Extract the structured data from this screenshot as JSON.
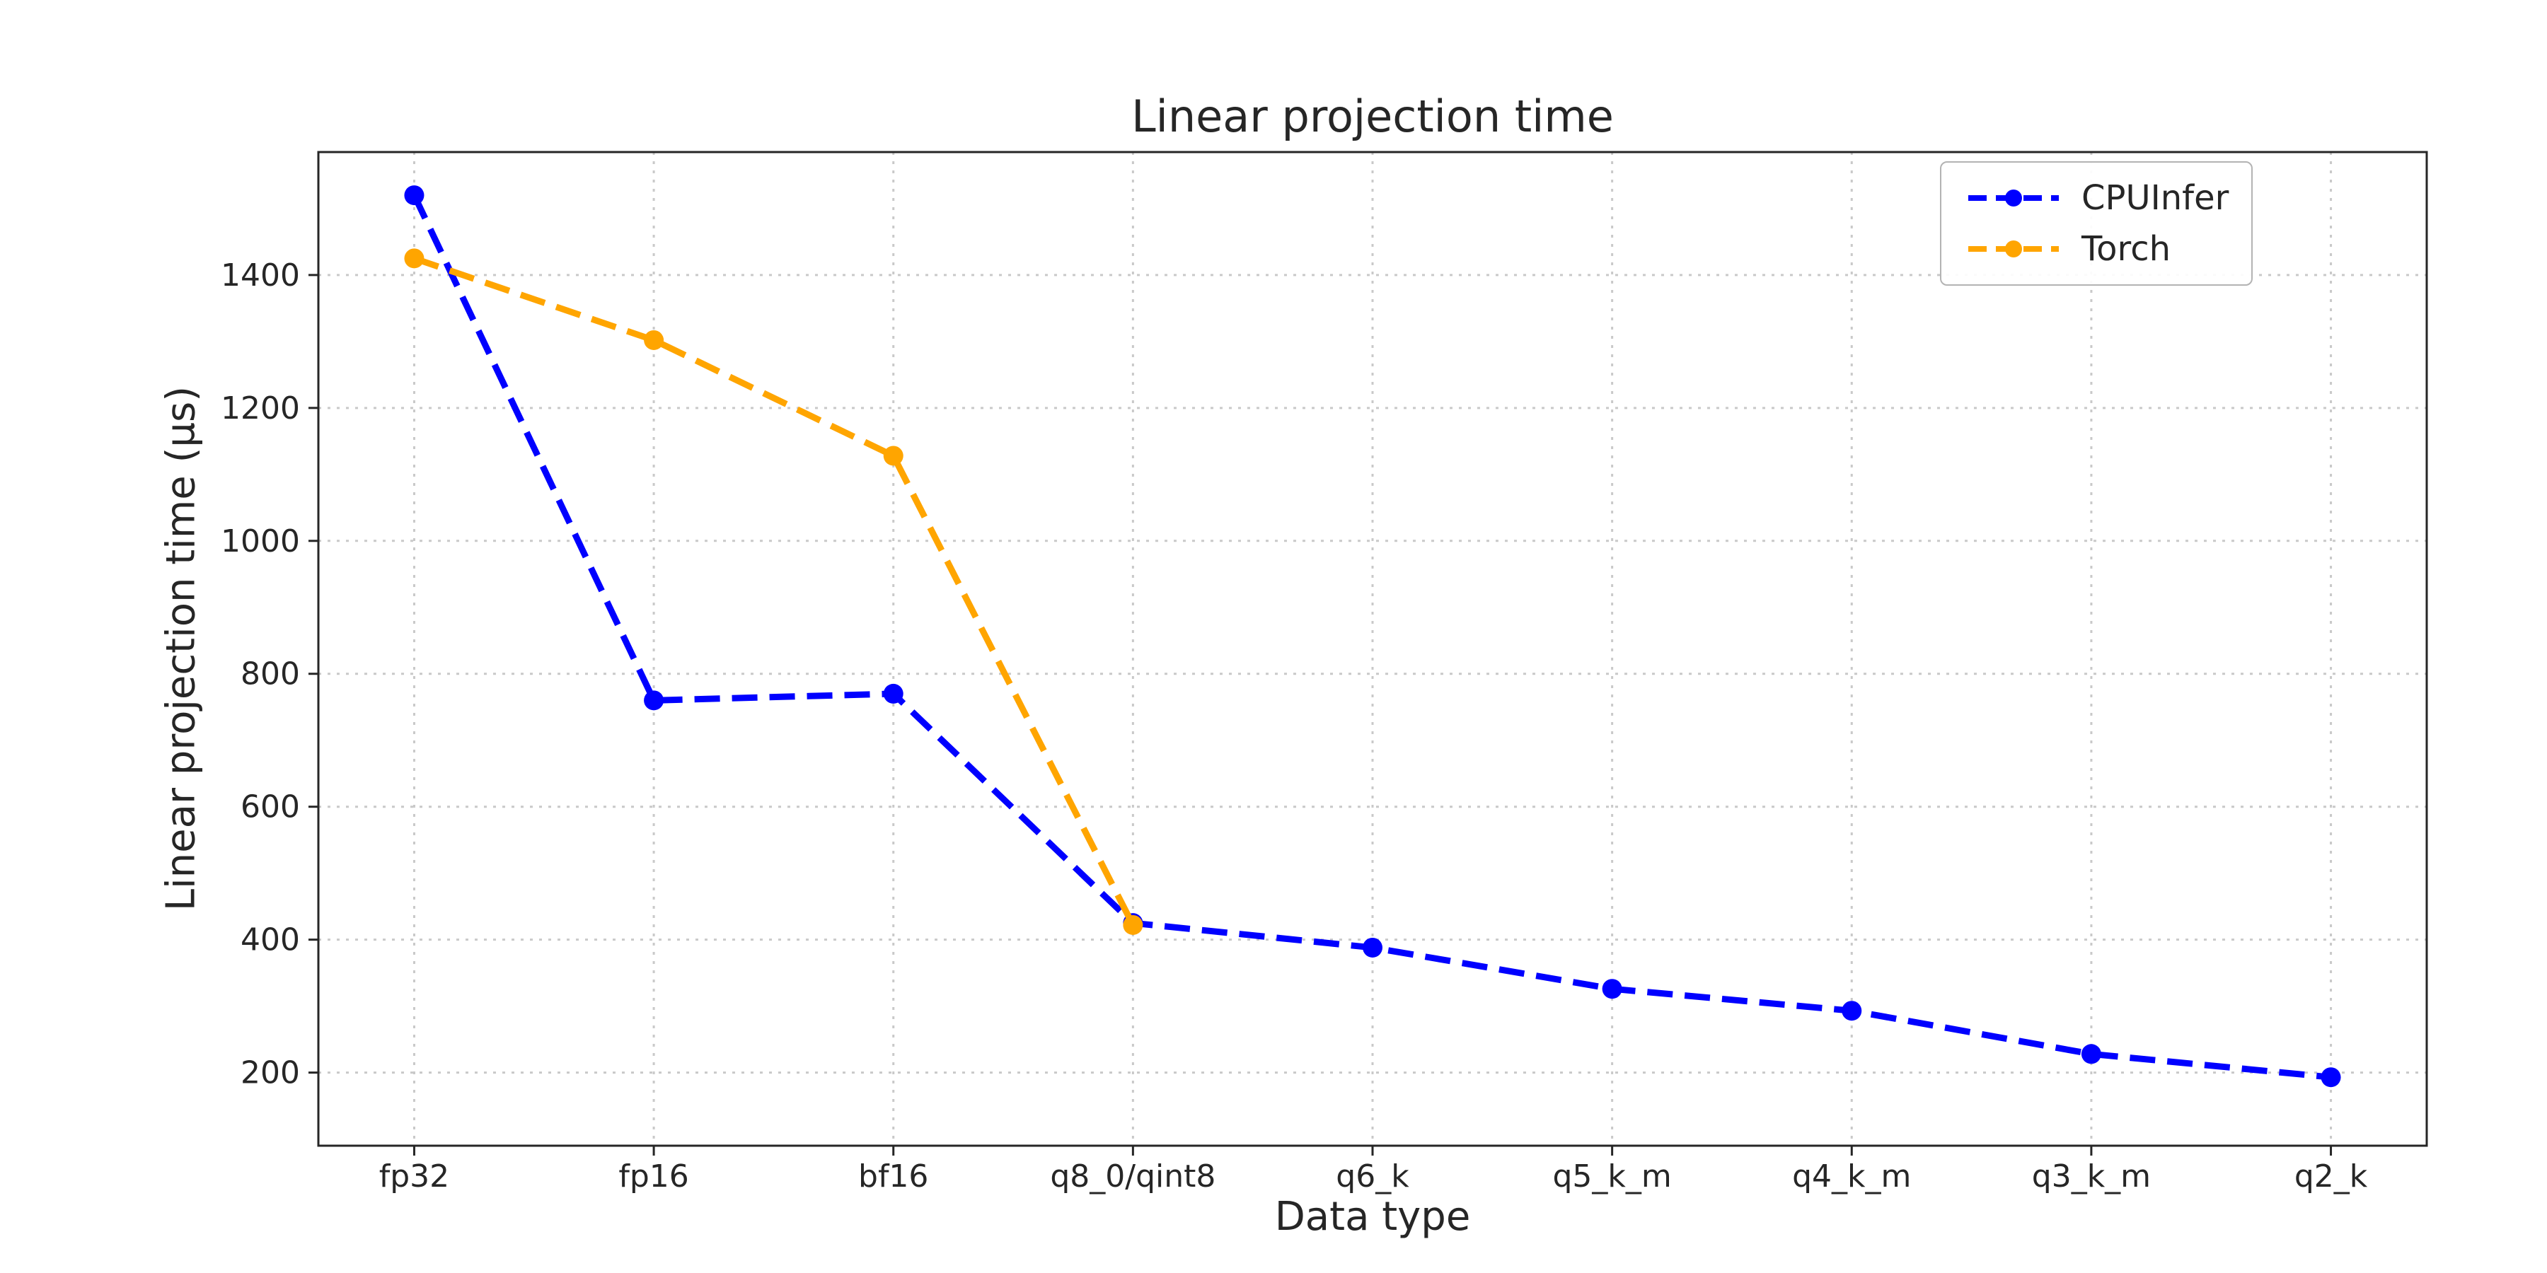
{
  "chart_data": {
    "type": "line",
    "title": "Linear projection time",
    "xlabel": "Data type",
    "ylabel": "Linear projection time (µs)",
    "categories": [
      "fp32",
      "fp16",
      "bf16",
      "q8_0/qint8",
      "q6_k",
      "q5_k_m",
      "q4_k_m",
      "q3_k_m",
      "q2_k"
    ],
    "series": [
      {
        "name": "CPUInfer",
        "color": "#0000ff",
        "line_style": "dashed",
        "marker": "circle",
        "values": [
          1520,
          760,
          770,
          425,
          388,
          326,
          293,
          228,
          193
        ]
      },
      {
        "name": "Torch",
        "color": "#ffa500",
        "line_style": "dashed",
        "marker": "circle",
        "values": [
          1425,
          1302,
          1128,
          422
        ]
      }
    ],
    "yticks": [
      200,
      400,
      600,
      800,
      1000,
      1200,
      1400
    ],
    "ylim": [
      90,
      1585
    ],
    "grid": true,
    "grid_color": "#c9c9c9",
    "text_color": "#262626",
    "spine_color": "#262626",
    "legend_position": "upper right"
  }
}
